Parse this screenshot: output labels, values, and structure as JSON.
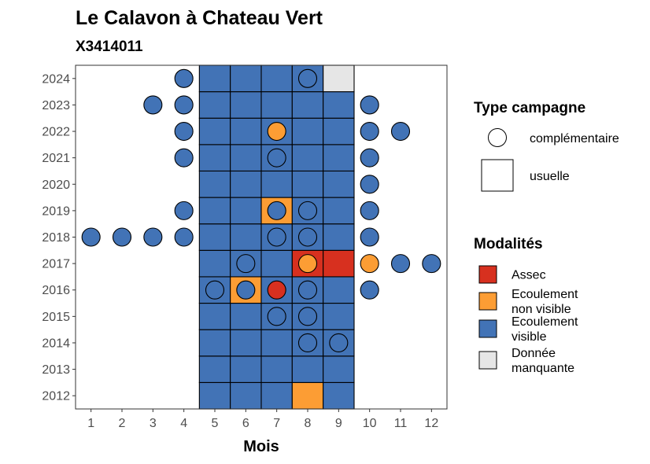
{
  "chart_data": {
    "type": "heatmap",
    "title": "Le Calavon à Chateau Vert",
    "subtitle": "X3414011",
    "xlabel": "Mois",
    "ylabel": "",
    "x_ticks": [
      "1",
      "2",
      "3",
      "4",
      "5",
      "6",
      "7",
      "8",
      "9",
      "10",
      "11",
      "12"
    ],
    "y_ticks": [
      "2012",
      "2013",
      "2014",
      "2015",
      "2016",
      "2017",
      "2018",
      "2019",
      "2020",
      "2021",
      "2022",
      "2023",
      "2024"
    ],
    "xlim": [
      0.5,
      12.5
    ],
    "ylim": [
      2011.5,
      2024.5
    ],
    "grid": false,
    "legend_position": "right",
    "colors": {
      "Assec": "#d7301f",
      "Ecoulement non visible": "#fc9d34",
      "Ecoulement visible": "#4273b6",
      "Donnée manquante": "#e6e6e6"
    },
    "legend_type": {
      "title": "Type campagne",
      "entries": [
        {
          "label": "complémentaire",
          "shape": "circle"
        },
        {
          "label": "usuelle",
          "shape": "square"
        }
      ]
    },
    "legend_modalites": {
      "title": "Modalités",
      "entries": [
        {
          "key": "Assec",
          "lines": [
            "Assec"
          ]
        },
        {
          "key": "Ecoulement non visible",
          "lines": [
            "Ecoulement",
            "non visible"
          ]
        },
        {
          "key": "Ecoulement visible",
          "lines": [
            "Ecoulement",
            "visible"
          ]
        },
        {
          "key": "Donnée manquante",
          "lines": [
            "Donnée",
            "manquante"
          ]
        }
      ]
    },
    "usuelle": [
      {
        "year": 2012,
        "months": [
          "Ecoulement visible",
          "Ecoulement visible",
          "Ecoulement visible",
          "Ecoulement non visible",
          "Ecoulement visible"
        ]
      },
      {
        "year": 2013,
        "months": [
          "Ecoulement visible",
          "Ecoulement visible",
          "Ecoulement visible",
          "Ecoulement visible",
          "Ecoulement visible"
        ]
      },
      {
        "year": 2014,
        "months": [
          "Ecoulement visible",
          "Ecoulement visible",
          "Ecoulement visible",
          "Ecoulement visible",
          "Ecoulement visible"
        ]
      },
      {
        "year": 2015,
        "months": [
          "Ecoulement visible",
          "Ecoulement visible",
          "Ecoulement visible",
          "Ecoulement visible",
          "Ecoulement visible"
        ]
      },
      {
        "year": 2016,
        "months": [
          "Ecoulement visible",
          "Ecoulement non visible",
          "Ecoulement visible",
          "Ecoulement visible",
          "Ecoulement visible"
        ]
      },
      {
        "year": 2017,
        "months": [
          "Ecoulement visible",
          "Ecoulement visible",
          "Ecoulement visible",
          "Assec",
          "Assec"
        ]
      },
      {
        "year": 2018,
        "months": [
          "Ecoulement visible",
          "Ecoulement visible",
          "Ecoulement visible",
          "Ecoulement visible",
          "Ecoulement visible"
        ]
      },
      {
        "year": 2019,
        "months": [
          "Ecoulement visible",
          "Ecoulement visible",
          "Ecoulement non visible",
          "Ecoulement visible",
          "Ecoulement visible"
        ]
      },
      {
        "year": 2020,
        "months": [
          "Ecoulement visible",
          "Ecoulement visible",
          "Ecoulement visible",
          "Ecoulement visible",
          "Ecoulement visible"
        ]
      },
      {
        "year": 2021,
        "months": [
          "Ecoulement visible",
          "Ecoulement visible",
          "Ecoulement visible",
          "Ecoulement visible",
          "Ecoulement visible"
        ]
      },
      {
        "year": 2022,
        "months": [
          "Ecoulement visible",
          "Ecoulement visible",
          "Ecoulement visible",
          "Ecoulement visible",
          "Ecoulement visible"
        ]
      },
      {
        "year": 2023,
        "months": [
          "Ecoulement visible",
          "Ecoulement visible",
          "Ecoulement visible",
          "Ecoulement visible",
          "Ecoulement visible"
        ]
      },
      {
        "year": 2024,
        "months": [
          "Ecoulement visible",
          "Ecoulement visible",
          "Ecoulement visible",
          "Ecoulement visible",
          "Donnée manquante"
        ]
      }
    ],
    "usuelle_first_month": 5,
    "complementaire": [
      {
        "year": 2024,
        "month": 4,
        "modalite": "Ecoulement visible"
      },
      {
        "year": 2024,
        "month": 8,
        "modalite": "Ecoulement visible"
      },
      {
        "year": 2023,
        "month": 3,
        "modalite": "Ecoulement visible"
      },
      {
        "year": 2023,
        "month": 4,
        "modalite": "Ecoulement visible"
      },
      {
        "year": 2023,
        "month": 10,
        "modalite": "Ecoulement visible"
      },
      {
        "year": 2022,
        "month": 4,
        "modalite": "Ecoulement visible"
      },
      {
        "year": 2022,
        "month": 7,
        "modalite": "Ecoulement non visible"
      },
      {
        "year": 2022,
        "month": 10,
        "modalite": "Ecoulement visible"
      },
      {
        "year": 2022,
        "month": 11,
        "modalite": "Ecoulement visible"
      },
      {
        "year": 2021,
        "month": 4,
        "modalite": "Ecoulement visible"
      },
      {
        "year": 2021,
        "month": 7,
        "modalite": "Ecoulement visible"
      },
      {
        "year": 2021,
        "month": 10,
        "modalite": "Ecoulement visible"
      },
      {
        "year": 2020,
        "month": 10,
        "modalite": "Ecoulement visible"
      },
      {
        "year": 2019,
        "month": 4,
        "modalite": "Ecoulement visible"
      },
      {
        "year": 2019,
        "month": 7,
        "modalite": "Ecoulement visible"
      },
      {
        "year": 2019,
        "month": 8,
        "modalite": "Ecoulement visible"
      },
      {
        "year": 2019,
        "month": 10,
        "modalite": "Ecoulement visible"
      },
      {
        "year": 2018,
        "month": 1,
        "modalite": "Ecoulement visible"
      },
      {
        "year": 2018,
        "month": 2,
        "modalite": "Ecoulement visible"
      },
      {
        "year": 2018,
        "month": 3,
        "modalite": "Ecoulement visible"
      },
      {
        "year": 2018,
        "month": 4,
        "modalite": "Ecoulement visible"
      },
      {
        "year": 2018,
        "month": 7,
        "modalite": "Ecoulement visible"
      },
      {
        "year": 2018,
        "month": 8,
        "modalite": "Ecoulement visible"
      },
      {
        "year": 2018,
        "month": 10,
        "modalite": "Ecoulement visible"
      },
      {
        "year": 2017,
        "month": 6,
        "modalite": "Ecoulement visible"
      },
      {
        "year": 2017,
        "month": 8,
        "modalite": "Ecoulement non visible"
      },
      {
        "year": 2017,
        "month": 10,
        "modalite": "Ecoulement non visible"
      },
      {
        "year": 2017,
        "month": 11,
        "modalite": "Ecoulement visible"
      },
      {
        "year": 2017,
        "month": 12,
        "modalite": "Ecoulement visible"
      },
      {
        "year": 2016,
        "month": 5,
        "modalite": "Ecoulement visible"
      },
      {
        "year": 2016,
        "month": 6,
        "modalite": "Ecoulement visible"
      },
      {
        "year": 2016,
        "month": 7,
        "modalite": "Assec"
      },
      {
        "year": 2016,
        "month": 8,
        "modalite": "Ecoulement visible"
      },
      {
        "year": 2016,
        "month": 10,
        "modalite": "Ecoulement visible"
      },
      {
        "year": 2015,
        "month": 7,
        "modalite": "Ecoulement visible"
      },
      {
        "year": 2015,
        "month": 8,
        "modalite": "Ecoulement visible"
      },
      {
        "year": 2014,
        "month": 8,
        "modalite": "Ecoulement visible"
      },
      {
        "year": 2014,
        "month": 9,
        "modalite": "Ecoulement visible"
      }
    ]
  }
}
